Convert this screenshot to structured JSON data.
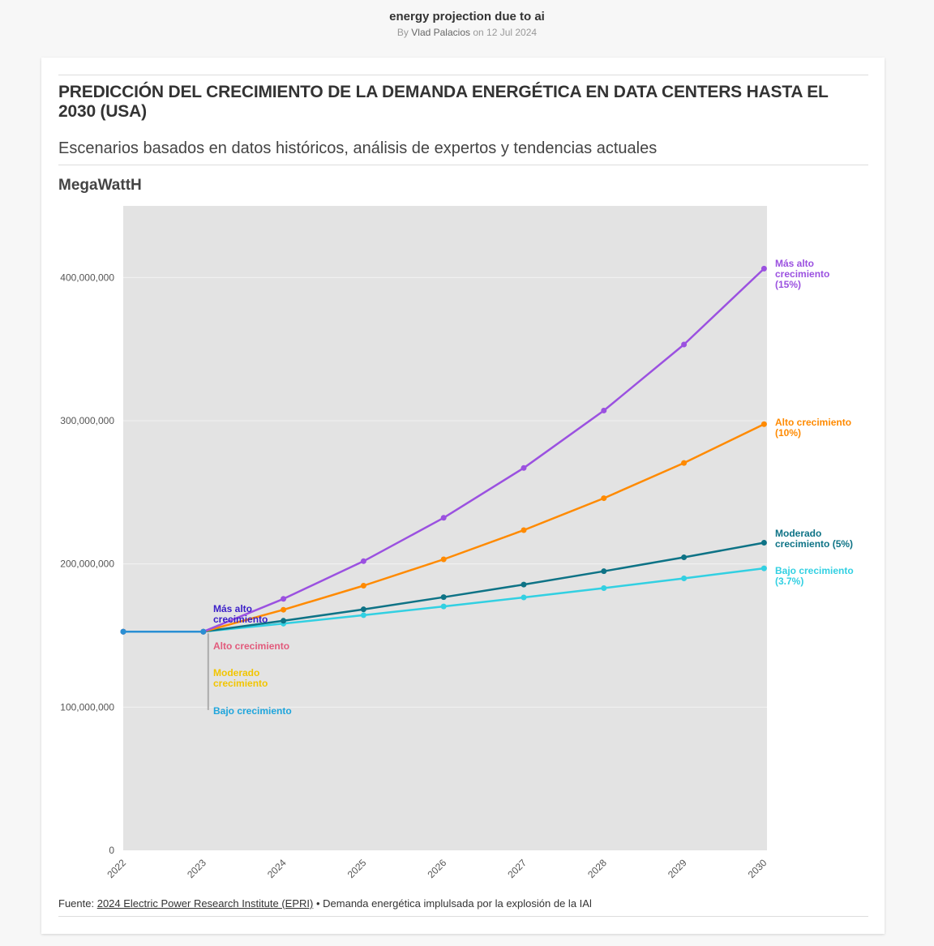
{
  "header": {
    "title": "energy projection due to ai",
    "by_prefix": "By",
    "author": "Vlad Palacios",
    "date_text": "on 12 Jul 2024"
  },
  "chart_header": {
    "title": "PREDICCIÓN DEL CRECIMIENTO DE LA DEMANDA ENERGÉTICA EN DATA CENTERS HASTA EL 2030 (USA)",
    "subtitle": "Escenarios basados en datos históricos, análisis de expertos y tendencias actuales",
    "unit_label": "MegaWattH"
  },
  "footer": {
    "prefix": "Fuente:",
    "source_link": "2024 Electric Power Research Institute (EPRI)",
    "separator": "•",
    "note": "Demanda energética implulsada por la explosión de la IAl"
  },
  "chart_data": {
    "type": "line",
    "x": [
      "2022",
      "2023",
      "2024",
      "2025",
      "2026",
      "2027",
      "2028",
      "2029",
      "2030"
    ],
    "ylim": [
      0,
      450000000
    ],
    "yticks": [
      0,
      100000000,
      200000000,
      300000000,
      400000000
    ],
    "ytick_labels": [
      "0",
      "100,000,000",
      "200,000,000",
      "300,000,000",
      "400,000,000"
    ],
    "grid": true,
    "plot_background": "#e3e3e3",
    "series": [
      {
        "key": "highest",
        "label_lines": [
          "Más alto",
          "crecimiento",
          "(15%)"
        ],
        "color": "#9b51e0",
        "values": [
          152700000,
          152700000,
          175600000,
          201900000,
          232200000,
          267000000,
          307100000,
          353200000,
          406200000
        ]
      },
      {
        "key": "high",
        "label_lines": [
          "Alto crecimiento",
          "(10%)"
        ],
        "color": "#ff8a00",
        "values": [
          152700000,
          152700000,
          168000000,
          184800000,
          203200000,
          223600000,
          245900000,
          270500000,
          297600000
        ]
      },
      {
        "key": "moderate",
        "label_lines": [
          "Moderado",
          "crecimiento (5%)"
        ],
        "color": "#0e7386",
        "values": [
          152700000,
          152700000,
          160300000,
          168300000,
          176800000,
          185600000,
          194900000,
          204600000,
          214800000
        ]
      },
      {
        "key": "low",
        "label_lines": [
          "Bajo crecimiento",
          "(3.7%)"
        ],
        "color": "#32d0e2",
        "values": [
          152700000,
          152700000,
          158300000,
          164200000,
          170300000,
          176600000,
          183100000,
          189900000,
          196900000
        ]
      },
      {
        "key": "historic",
        "label_lines": [],
        "color": "#2a8fd3",
        "values": [
          152700000,
          152700000,
          null,
          null,
          null,
          null,
          null,
          null,
          null
        ]
      }
    ],
    "annotations": [
      {
        "lines": [
          "Más alto",
          "crecimiento"
        ],
        "color": "#3a1ec8"
      },
      {
        "lines": [
          "Alto crecimiento"
        ],
        "color": "#e25b7c"
      },
      {
        "lines": [
          "Moderado",
          "crecimiento"
        ],
        "color": "#f2c500"
      },
      {
        "lines": [
          "Bajo crecimiento"
        ],
        "color": "#1ea5dc"
      }
    ]
  }
}
